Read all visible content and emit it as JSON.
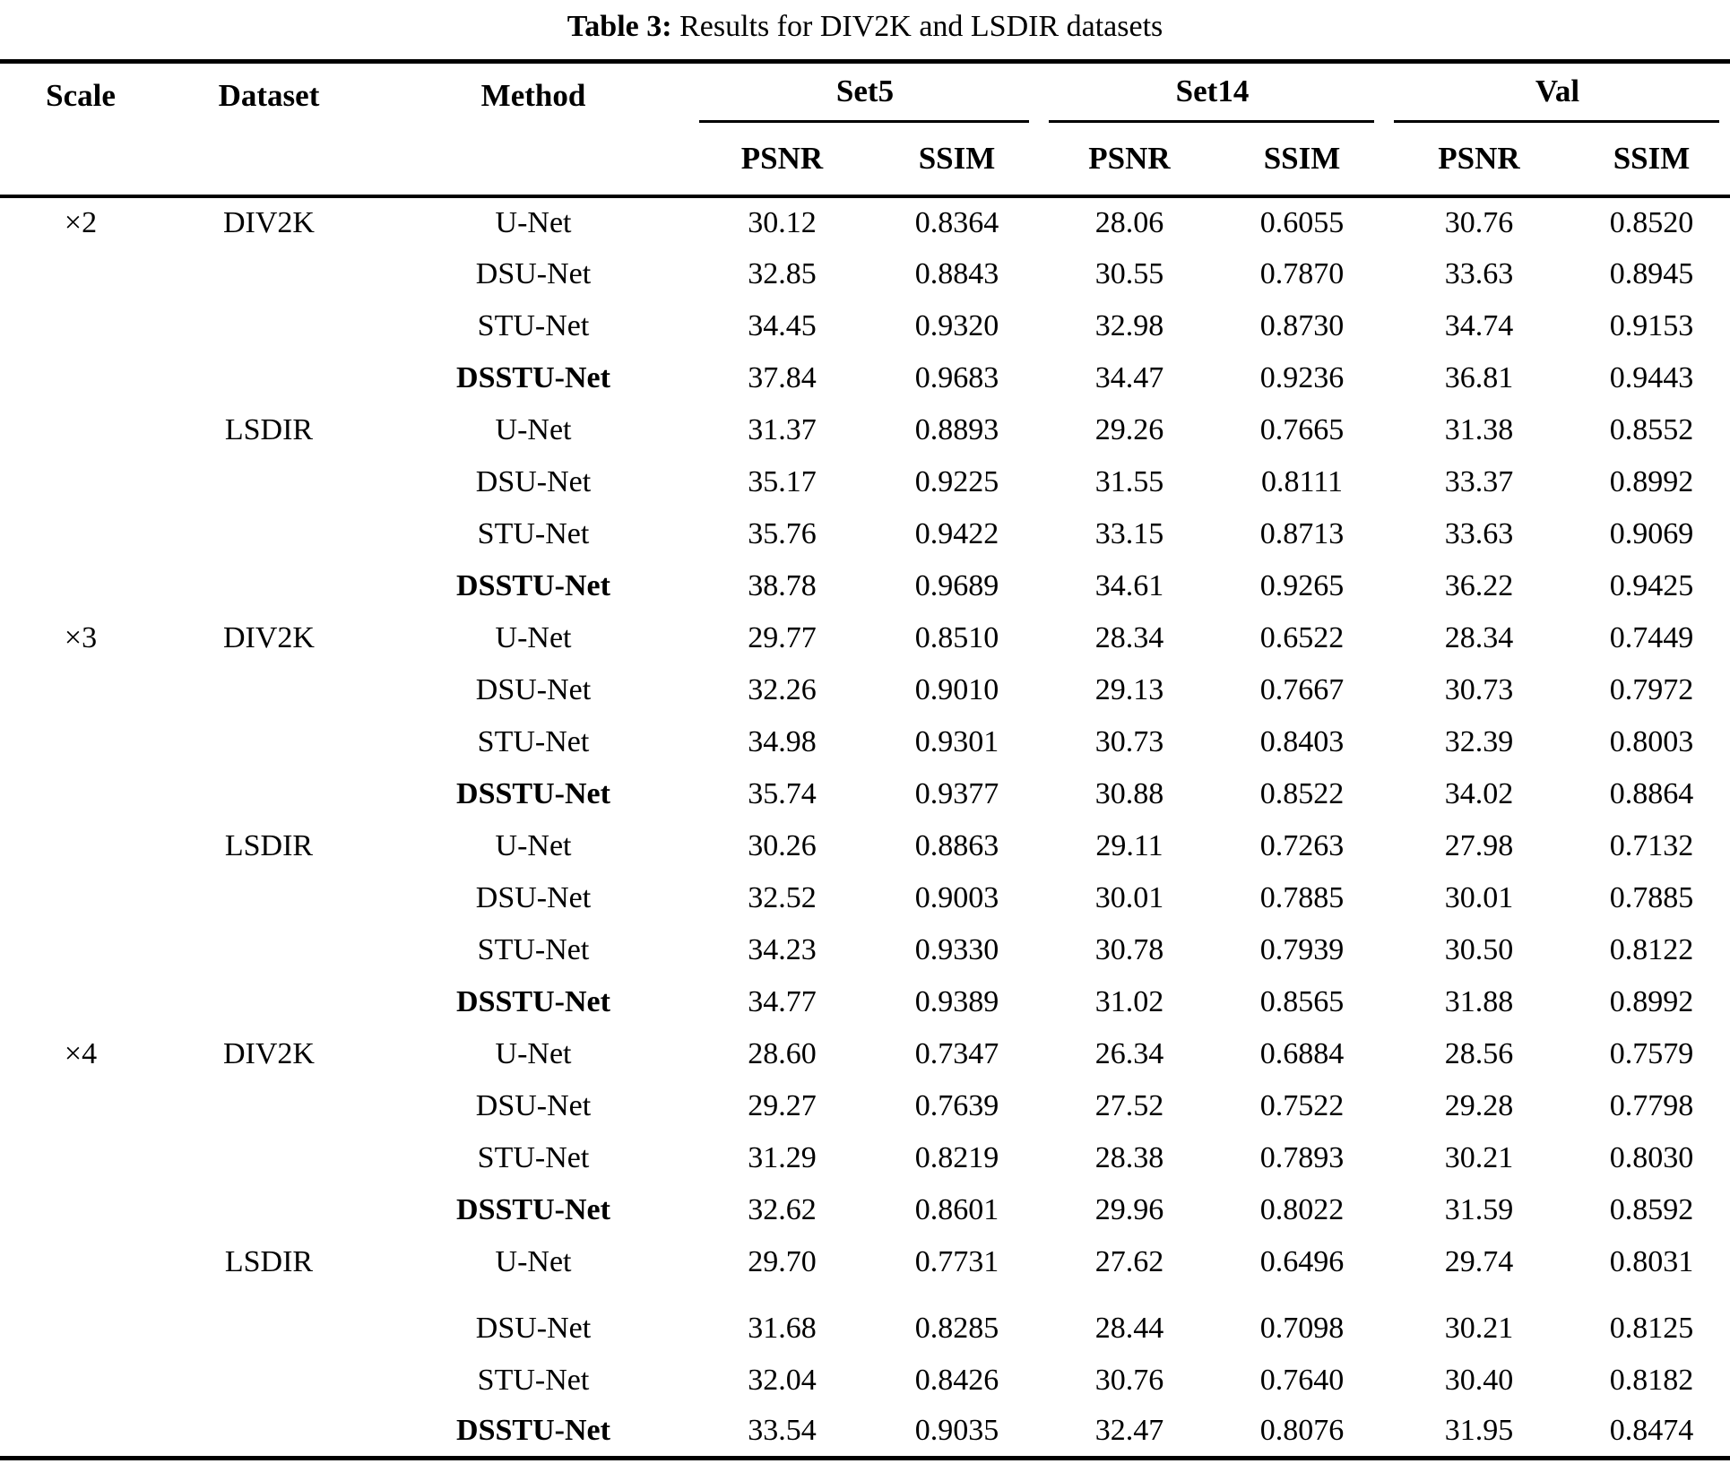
{
  "caption": {
    "label": "Table 3:",
    "text": " Results for DIV2K and LSDIR datasets"
  },
  "header": {
    "scale": "Scale",
    "dataset": "Dataset",
    "method": "Method",
    "groups": [
      "Set5",
      "Set14",
      "Val"
    ],
    "metrics": [
      "PSNR",
      "SSIM"
    ]
  },
  "rows": [
    {
      "scale": "×2",
      "dataset": "DIV2K",
      "method": "U-Net",
      "bold": false,
      "values": [
        "30.12",
        "0.8364",
        "28.06",
        "0.6055",
        "30.76",
        "0.8520"
      ]
    },
    {
      "scale": "",
      "dataset": "",
      "method": "DSU-Net",
      "bold": false,
      "values": [
        "32.85",
        "0.8843",
        "30.55",
        "0.7870",
        "33.63",
        "0.8945"
      ]
    },
    {
      "scale": "",
      "dataset": "",
      "method": "STU-Net",
      "bold": false,
      "values": [
        "34.45",
        "0.9320",
        "32.98",
        "0.8730",
        "34.74",
        "0.9153"
      ]
    },
    {
      "scale": "",
      "dataset": "",
      "method": "DSSTU-Net",
      "bold": true,
      "values": [
        "37.84",
        "0.9683",
        "34.47",
        "0.9236",
        "36.81",
        "0.9443"
      ]
    },
    {
      "scale": "",
      "dataset": "LSDIR",
      "method": "U-Net",
      "bold": false,
      "values": [
        "31.37",
        "0.8893",
        "29.26",
        "0.7665",
        "31.38",
        "0.8552"
      ]
    },
    {
      "scale": "",
      "dataset": "",
      "method": "DSU-Net",
      "bold": false,
      "values": [
        "35.17",
        "0.9225",
        "31.55",
        "0.8111",
        "33.37",
        "0.8992"
      ]
    },
    {
      "scale": "",
      "dataset": "",
      "method": "STU-Net",
      "bold": false,
      "values": [
        "35.76",
        "0.9422",
        "33.15",
        "0.8713",
        "33.63",
        "0.9069"
      ]
    },
    {
      "scale": "",
      "dataset": "",
      "method": "DSSTU-Net",
      "bold": true,
      "values": [
        "38.78",
        "0.9689",
        "34.61",
        "0.9265",
        "36.22",
        "0.9425"
      ]
    },
    {
      "scale": "×3",
      "dataset": "DIV2K",
      "method": "U-Net",
      "bold": false,
      "values": [
        "29.77",
        "0.8510",
        "28.34",
        "0.6522",
        "28.34",
        "0.7449"
      ]
    },
    {
      "scale": "",
      "dataset": "",
      "method": "DSU-Net",
      "bold": false,
      "values": [
        "32.26",
        "0.9010",
        "29.13",
        "0.7667",
        "30.73",
        "0.7972"
      ]
    },
    {
      "scale": "",
      "dataset": "",
      "method": "STU-Net",
      "bold": false,
      "values": [
        "34.98",
        "0.9301",
        "30.73",
        "0.8403",
        "32.39",
        "0.8003"
      ]
    },
    {
      "scale": "",
      "dataset": "",
      "method": "DSSTU-Net",
      "bold": true,
      "values": [
        "35.74",
        "0.9377",
        "30.88",
        "0.8522",
        "34.02",
        "0.8864"
      ]
    },
    {
      "scale": "",
      "dataset": "LSDIR",
      "method": "U-Net",
      "bold": false,
      "values": [
        "30.26",
        "0.8863",
        "29.11",
        "0.7263",
        "27.98",
        "0.7132"
      ]
    },
    {
      "scale": "",
      "dataset": "",
      "method": "DSU-Net",
      "bold": false,
      "values": [
        "32.52",
        "0.9003",
        "30.01",
        "0.7885",
        "30.01",
        "0.7885"
      ]
    },
    {
      "scale": "",
      "dataset": "",
      "method": "STU-Net",
      "bold": false,
      "values": [
        "34.23",
        "0.9330",
        "30.78",
        "0.7939",
        "30.50",
        "0.8122"
      ]
    },
    {
      "scale": "",
      "dataset": "",
      "method": "DSSTU-Net",
      "bold": true,
      "values": [
        "34.77",
        "0.9389",
        "31.02",
        "0.8565",
        "31.88",
        "0.8992"
      ]
    },
    {
      "scale": "×4",
      "dataset": "DIV2K",
      "method": "U-Net",
      "bold": false,
      "values": [
        "28.60",
        "0.7347",
        "26.34",
        "0.6884",
        "28.56",
        "0.7579"
      ]
    },
    {
      "scale": "",
      "dataset": "",
      "method": "DSU-Net",
      "bold": false,
      "values": [
        "29.27",
        "0.7639",
        "27.52",
        "0.7522",
        "29.28",
        "0.7798"
      ]
    },
    {
      "scale": "",
      "dataset": "",
      "method": "STU-Net",
      "bold": false,
      "values": [
        "31.29",
        "0.8219",
        "28.38",
        "0.7893",
        "30.21",
        "0.8030"
      ]
    },
    {
      "scale": "",
      "dataset": "",
      "method": "DSSTU-Net",
      "bold": true,
      "values": [
        "32.62",
        "0.8601",
        "29.96",
        "0.8022",
        "31.59",
        "0.8592"
      ]
    },
    {
      "scale": "",
      "dataset": "LSDIR",
      "method": "U-Net",
      "bold": false,
      "values": [
        "29.70",
        "0.7731",
        "27.62",
        "0.6496",
        "29.74",
        "0.8031"
      ]
    },
    {
      "scale": "",
      "dataset": "",
      "method": "DSU-Net",
      "bold": false,
      "values": [
        "31.68",
        "0.8285",
        "28.44",
        "0.7098",
        "30.21",
        "0.8125"
      ]
    },
    {
      "scale": "",
      "dataset": "",
      "method": "STU-Net",
      "bold": false,
      "values": [
        "32.04",
        "0.8426",
        "30.76",
        "0.7640",
        "30.40",
        "0.8182"
      ]
    },
    {
      "scale": "",
      "dataset": "",
      "method": "DSSTU-Net",
      "bold": true,
      "values": [
        "33.54",
        "0.9035",
        "32.47",
        "0.8076",
        "31.95",
        "0.8474"
      ]
    }
  ]
}
